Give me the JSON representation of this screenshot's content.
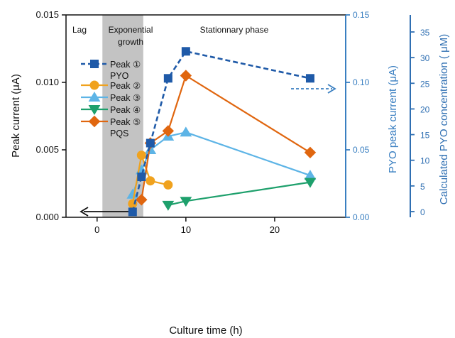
{
  "chart_data": {
    "type": "line",
    "phase_labels": [
      "Lag",
      "Exponential",
      "growth",
      "Stationnary phase"
    ],
    "growth_band_x": [
      0.6,
      5.2
    ],
    "x_axis": {
      "label": "Culture time (h)",
      "range": [
        -3.5,
        28
      ],
      "ticks": [
        0,
        10,
        20
      ],
      "tick_labels": [
        "0",
        "10",
        "20"
      ]
    },
    "y_left": {
      "label": "Peak current (μA)",
      "range": [
        0,
        0.015
      ],
      "ticks": [
        0,
        0.005,
        0.01,
        0.015
      ],
      "tick_labels": [
        "0.000",
        "0.005",
        "0.010",
        "0.015"
      ]
    },
    "y_right1": {
      "label": "PYO peak  current (μA)",
      "range": [
        0,
        0.15
      ],
      "ticks": [
        0,
        0.05,
        0.1,
        0.15
      ],
      "tick_labels": [
        "0.00",
        "0.05",
        "0.10",
        "0.15"
      ],
      "color": "#3a7fc1"
    },
    "y_right2": {
      "label": "Calculated PYO concentration ( μM)",
      "tick_values": [
        0,
        5,
        10,
        15,
        20,
        25,
        30,
        35
      ],
      "tick_labels": [
        "0",
        "5",
        "10",
        "15",
        "20",
        "25",
        "30",
        "35"
      ],
      "color": "#2f6fb2"
    },
    "series": [
      {
        "name": "Peak ① PYO",
        "legend_lines": [
          "Peak ①",
          "PYO"
        ],
        "color": "#1f5aa8",
        "marker": "square",
        "dashed": true,
        "x": [
          4,
          5,
          6,
          8,
          10,
          24
        ],
        "y": [
          0.0004,
          0.003,
          0.0055,
          0.0103,
          0.0123,
          0.0103
        ]
      },
      {
        "name": "Peak ②",
        "legend_lines": [
          "Peak ②"
        ],
        "color": "#f0a21e",
        "marker": "circle",
        "dashed": false,
        "x": [
          4,
          5,
          6,
          8
        ],
        "y": [
          0.001,
          0.0046,
          0.0027,
          0.0024
        ]
      },
      {
        "name": "Peak ③",
        "legend_lines": [
          "Peak ③"
        ],
        "color": "#5db4e6",
        "marker": "triangle-up",
        "dashed": false,
        "x": [
          4,
          5,
          6,
          8,
          10,
          24
        ],
        "y": [
          0.0017,
          0.0035,
          0.005,
          0.006,
          0.0063,
          0.0031
        ]
      },
      {
        "name": "Peak ④",
        "legend_lines": [
          "Peak ④"
        ],
        "color": "#1ea06c",
        "marker": "triangle-down",
        "dashed": false,
        "x": [
          8,
          10,
          24
        ],
        "y": [
          0.0009,
          0.0012,
          0.0026
        ]
      },
      {
        "name": "Peak ⑤ PQS",
        "legend_lines": [
          "Peak ⑤",
          "PQS"
        ],
        "color": "#e0660f",
        "marker": "diamond",
        "dashed": false,
        "x": [
          5,
          6,
          8,
          10,
          24
        ],
        "y": [
          0.0013,
          0.0055,
          0.0064,
          0.0105,
          0.0048
        ]
      }
    ],
    "legend_placement": "upper-left",
    "grid": false
  }
}
